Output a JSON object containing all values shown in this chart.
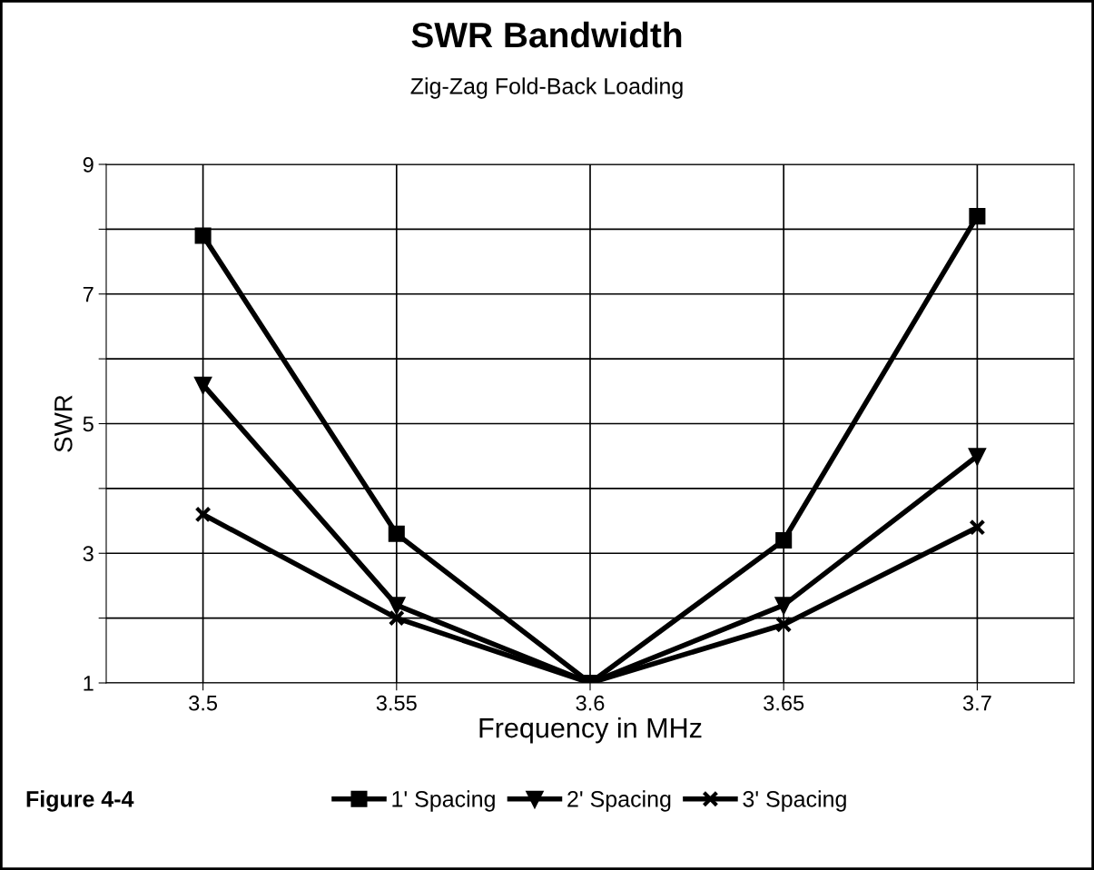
{
  "chart_data": {
    "type": "line",
    "title": "SWR Bandwidth",
    "subtitle": "Zig-Zag Fold-Back Loading",
    "xlabel": "Frequency in MHz",
    "ylabel": "SWR",
    "x": [
      3.5,
      3.55,
      3.6,
      3.65,
      3.7
    ],
    "series": [
      {
        "name": "1' Spacing",
        "color": "#000000",
        "marker": "square",
        "values": [
          7.9,
          3.3,
          1.0,
          3.2,
          8.2
        ]
      },
      {
        "name": "2' Spacing",
        "color": "#000000",
        "marker": "triangle",
        "values": [
          5.6,
          2.2,
          1.0,
          2.2,
          4.5
        ]
      },
      {
        "name": "3' Spacing",
        "color": "#000000",
        "marker": "cross",
        "values": [
          3.6,
          2.0,
          1.0,
          1.9,
          3.4
        ]
      }
    ],
    "xlim": [
      3.475,
      3.725
    ],
    "xticks": [
      3.5,
      3.55,
      3.6,
      3.65,
      3.7
    ],
    "ylim": [
      1,
      9
    ],
    "yticks": [
      1,
      {
        "value": 2,
        "label": null
      },
      3,
      {
        "value": 4,
        "label": null
      },
      5,
      {
        "value": 6,
        "label": null
      },
      7,
      {
        "value": 8,
        "label": null
      },
      9
    ],
    "grid": true,
    "legend": "bottom",
    "line_style": "solid",
    "annotations": [
      "Figure 4-4"
    ]
  }
}
